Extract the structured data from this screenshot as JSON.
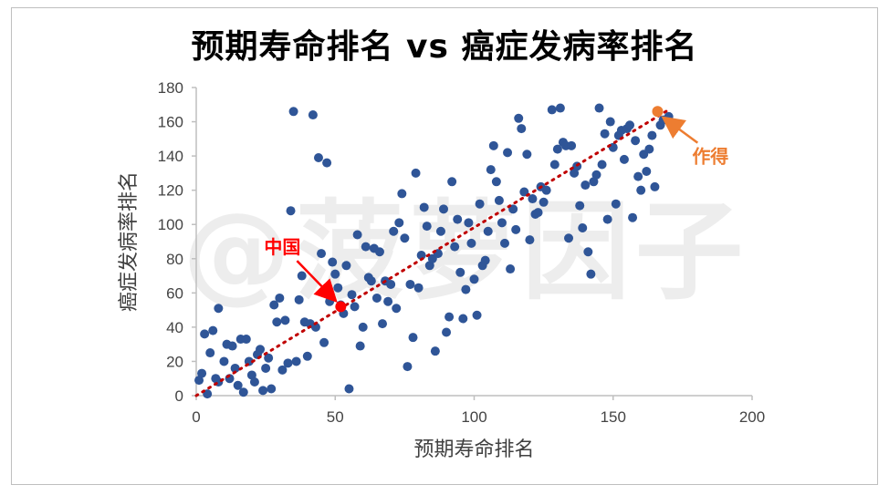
{
  "title": "预期寿命排名 vs 癌症发病率排名",
  "watermark": "@菠萝因子",
  "colors": {
    "points": "#2f5597",
    "trend": "#c00000",
    "china": "#ff0000",
    "zuode": "#ed7d31",
    "axis": "#bfbfbf"
  },
  "chart_data": {
    "type": "scatter",
    "title": "预期寿命排名 vs 癌症发病率排名",
    "xlabel": "预期寿命排名",
    "ylabel": "癌症发病率排名",
    "xlim": [
      0,
      200
    ],
    "ylim": [
      0,
      180
    ],
    "xticks": [
      "0",
      "50",
      "100",
      "150",
      "200"
    ],
    "yticks": [
      "0",
      "20",
      "40",
      "60",
      "80",
      "100",
      "120",
      "140",
      "160",
      "180"
    ],
    "grid": false,
    "trendline": {
      "style": "dotted",
      "from": [
        0,
        0
      ],
      "to": [
        170,
        167
      ]
    },
    "series": [
      {
        "values": [
          [
            1,
            9
          ],
          [
            2,
            13
          ],
          [
            3,
            36
          ],
          [
            4,
            1
          ],
          [
            5,
            25
          ],
          [
            6,
            38
          ],
          [
            7,
            10
          ],
          [
            8,
            8
          ],
          [
            8,
            51
          ],
          [
            10,
            20
          ],
          [
            11,
            30
          ],
          [
            12,
            10
          ],
          [
            13,
            29
          ],
          [
            14,
            16
          ],
          [
            15,
            6
          ],
          [
            16,
            33
          ],
          [
            17,
            2
          ],
          [
            18,
            33
          ],
          [
            19,
            20
          ],
          [
            20,
            12
          ],
          [
            21,
            8
          ],
          [
            22,
            24
          ],
          [
            23,
            27
          ],
          [
            24,
            3
          ],
          [
            25,
            16
          ],
          [
            26,
            22
          ],
          [
            27,
            4
          ],
          [
            28,
            53
          ],
          [
            29,
            43
          ],
          [
            30,
            57
          ],
          [
            31,
            15
          ],
          [
            32,
            44
          ],
          [
            33,
            19
          ],
          [
            34,
            108
          ],
          [
            35,
            166
          ],
          [
            36,
            20
          ],
          [
            37,
            56
          ],
          [
            38,
            70
          ],
          [
            39,
            43
          ],
          [
            40,
            23
          ],
          [
            41,
            42
          ],
          [
            42,
            164
          ],
          [
            43,
            40
          ],
          [
            44,
            139
          ],
          [
            45,
            83
          ],
          [
            46,
            31
          ],
          [
            47,
            136
          ],
          [
            48,
            55
          ],
          [
            49,
            78
          ],
          [
            50,
            71
          ],
          [
            51,
            63
          ],
          [
            52,
            53
          ],
          [
            53,
            48
          ],
          [
            54,
            76
          ],
          [
            55,
            4
          ],
          [
            56,
            59
          ],
          [
            57,
            52
          ],
          [
            58,
            94
          ],
          [
            59,
            29
          ],
          [
            60,
            40
          ],
          [
            61,
            87
          ],
          [
            62,
            69
          ],
          [
            63,
            67
          ],
          [
            64,
            86
          ],
          [
            65,
            57
          ],
          [
            66,
            84
          ],
          [
            67,
            42
          ],
          [
            68,
            67
          ],
          [
            69,
            55
          ],
          [
            70,
            65
          ],
          [
            71,
            96
          ],
          [
            72,
            51
          ],
          [
            73,
            101
          ],
          [
            74,
            118
          ],
          [
            75,
            92
          ],
          [
            76,
            17
          ],
          [
            77,
            65
          ],
          [
            78,
            34
          ],
          [
            79,
            130
          ],
          [
            80,
            63
          ],
          [
            81,
            82
          ],
          [
            82,
            110
          ],
          [
            83,
            99
          ],
          [
            84,
            76
          ],
          [
            85,
            80
          ],
          [
            86,
            26
          ],
          [
            87,
            83
          ],
          [
            88,
            96
          ],
          [
            89,
            109
          ],
          [
            90,
            37
          ],
          [
            91,
            46
          ],
          [
            92,
            125
          ],
          [
            93,
            87
          ],
          [
            94,
            103
          ],
          [
            95,
            72
          ],
          [
            96,
            45
          ],
          [
            97,
            62
          ],
          [
            98,
            101
          ],
          [
            99,
            89
          ],
          [
            100,
            68
          ],
          [
            101,
            47
          ],
          [
            102,
            112
          ],
          [
            103,
            76
          ],
          [
            104,
            79
          ],
          [
            105,
            96
          ],
          [
            106,
            132
          ],
          [
            107,
            146
          ],
          [
            108,
            125
          ],
          [
            109,
            114
          ],
          [
            110,
            101
          ],
          [
            111,
            89
          ],
          [
            112,
            142
          ],
          [
            113,
            74
          ],
          [
            114,
            109
          ],
          [
            115,
            97
          ],
          [
            116,
            162
          ],
          [
            117,
            156
          ],
          [
            118,
            119
          ],
          [
            119,
            141
          ],
          [
            120,
            91
          ],
          [
            121,
            115
          ],
          [
            122,
            106
          ],
          [
            123,
            107
          ],
          [
            124,
            122
          ],
          [
            125,
            113
          ],
          [
            126,
            120
          ],
          [
            128,
            167
          ],
          [
            129,
            135
          ],
          [
            130,
            144
          ],
          [
            131,
            168
          ],
          [
            132,
            148
          ],
          [
            133,
            146
          ],
          [
            134,
            92
          ],
          [
            135,
            146
          ],
          [
            136,
            130
          ],
          [
            137,
            134
          ],
          [
            138,
            111
          ],
          [
            139,
            98
          ],
          [
            140,
            123
          ],
          [
            141,
            84
          ],
          [
            142,
            71
          ],
          [
            143,
            125
          ],
          [
            144,
            129
          ],
          [
            145,
            168
          ],
          [
            146,
            135
          ],
          [
            147,
            153
          ],
          [
            148,
            103
          ],
          [
            149,
            160
          ],
          [
            150,
            145
          ],
          [
            151,
            112
          ],
          [
            152,
            152
          ],
          [
            153,
            155
          ],
          [
            154,
            138
          ],
          [
            155,
            156
          ],
          [
            156,
            158
          ],
          [
            157,
            104
          ],
          [
            158,
            149
          ],
          [
            159,
            128
          ],
          [
            160,
            120
          ],
          [
            161,
            141
          ],
          [
            162,
            131
          ],
          [
            163,
            144
          ],
          [
            164,
            152
          ],
          [
            165,
            122
          ],
          [
            167,
            158
          ],
          [
            168,
            161
          ],
          [
            170,
            163
          ]
        ]
      }
    ],
    "annotations": [
      {
        "text": "中国",
        "point": [
          52,
          52
        ],
        "label_at": [
          31,
          83
        ]
      },
      {
        "text": "作得",
        "point": [
          166,
          166
        ],
        "label_at": [
          185,
          136
        ]
      }
    ]
  }
}
